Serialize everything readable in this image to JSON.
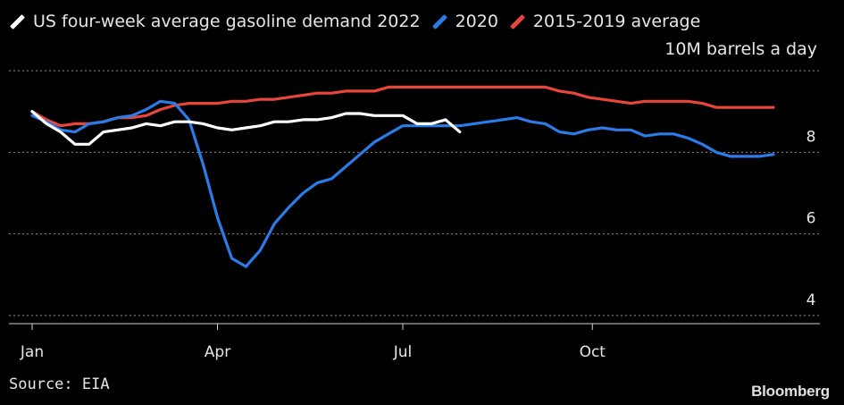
{
  "legend": [
    {
      "label": "US four-week average gasoline demand 2022",
      "color": "#ffffff"
    },
    {
      "label": "2020",
      "color": "#2b7be8"
    },
    {
      "label": "2015-2019 average",
      "color": "#e8463a"
    }
  ],
  "unit_label": "10M barrels a day",
  "source": "Source: EIA",
  "brand": "Bloomberg",
  "chart_data": {
    "type": "line",
    "x_unit": "week of year",
    "x_ticks": [
      {
        "label": "Jan",
        "week": 0
      },
      {
        "label": "Apr",
        "week": 13
      },
      {
        "label": "Jul",
        "week": 26
      },
      {
        "label": "Oct",
        "week": 39.3
      }
    ],
    "y_ticks": [
      4,
      6,
      8
    ],
    "ylim": [
      3.8,
      10.2
    ],
    "xlim": [
      0,
      52
    ],
    "grid": true,
    "legend_position": "top-left",
    "series": [
      {
        "name": "US four-week average gasoline demand 2022",
        "color": "#ffffff",
        "values": [
          9.0,
          8.7,
          8.5,
          8.2,
          8.2,
          8.5,
          8.55,
          8.6,
          8.7,
          8.65,
          8.75,
          8.75,
          8.7,
          8.6,
          8.55,
          8.6,
          8.65,
          8.75,
          8.75,
          8.8,
          8.8,
          8.85,
          8.95,
          8.95,
          8.9,
          8.9,
          8.9,
          8.7,
          8.7,
          8.8,
          8.5
        ]
      },
      {
        "name": "2020",
        "color": "#2b7be8",
        "values": [
          8.9,
          8.75,
          8.55,
          8.5,
          8.7,
          8.75,
          8.85,
          8.9,
          9.05,
          9.25,
          9.2,
          8.8,
          7.7,
          6.4,
          5.4,
          5.2,
          5.6,
          6.25,
          6.65,
          7.0,
          7.25,
          7.35,
          7.65,
          7.95,
          8.25,
          8.45,
          8.65,
          8.65,
          8.65,
          8.65,
          8.65,
          8.7,
          8.75,
          8.8,
          8.85,
          8.75,
          8.7,
          8.5,
          8.45,
          8.55,
          8.6,
          8.55,
          8.55,
          8.4,
          8.45,
          8.45,
          8.35,
          8.2,
          8.0,
          7.9,
          7.9,
          7.9,
          7.95
        ]
      },
      {
        "name": "2015-2019 average",
        "color": "#e8463a",
        "values": [
          9.0,
          8.8,
          8.65,
          8.7,
          8.7,
          8.75,
          8.85,
          8.85,
          8.9,
          9.05,
          9.15,
          9.2,
          9.2,
          9.2,
          9.25,
          9.25,
          9.3,
          9.3,
          9.35,
          9.4,
          9.45,
          9.45,
          9.5,
          9.5,
          9.5,
          9.6,
          9.6,
          9.6,
          9.6,
          9.6,
          9.6,
          9.6,
          9.6,
          9.6,
          9.6,
          9.6,
          9.6,
          9.5,
          9.45,
          9.35,
          9.3,
          9.25,
          9.2,
          9.25,
          9.25,
          9.25,
          9.25,
          9.2,
          9.1,
          9.1,
          9.1,
          9.1,
          9.1
        ]
      }
    ]
  }
}
